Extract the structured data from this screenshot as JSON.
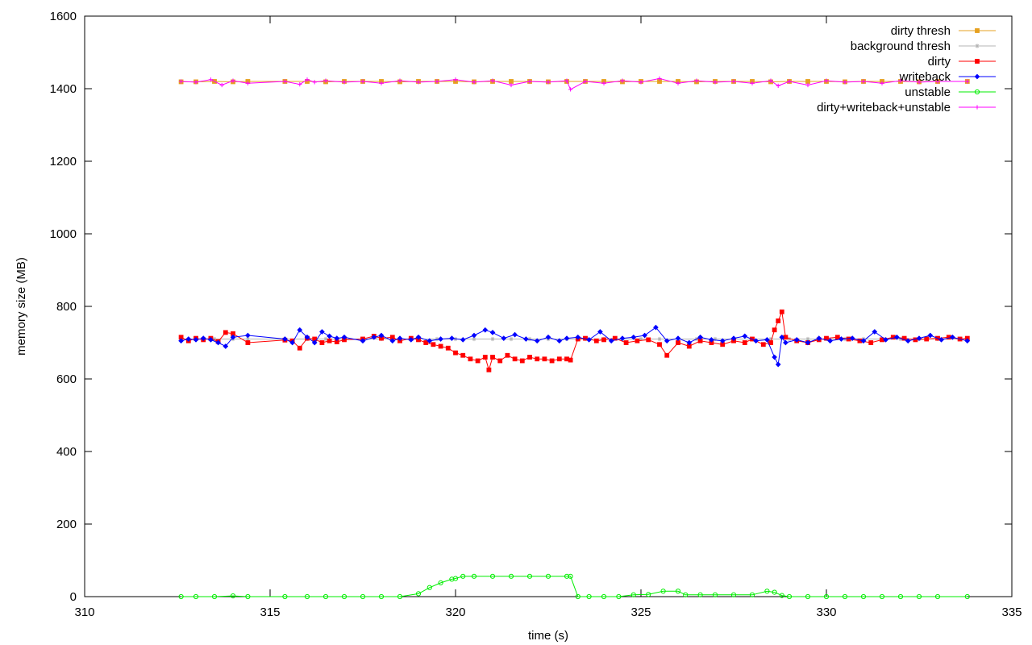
{
  "chart_data": {
    "type": "line",
    "title": "",
    "xlabel": "time (s)",
    "ylabel": "memory size (MB)",
    "xlim": [
      310,
      335
    ],
    "ylim": [
      0,
      1600
    ],
    "xticks": [
      310,
      315,
      320,
      325,
      330,
      335
    ],
    "yticks": [
      0,
      200,
      400,
      600,
      800,
      1000,
      1200,
      1400,
      1600
    ],
    "grid": false,
    "legend_position": "top-right",
    "series": [
      {
        "name": "dirty thresh",
        "color": "#e6a020",
        "marker": "square",
        "x": [
          312.6,
          313,
          313.5,
          314,
          314.4,
          315.4,
          316,
          316.5,
          317,
          317.5,
          318,
          318.5,
          319,
          319.5,
          320,
          320.5,
          321,
          321.5,
          322,
          322.5,
          323,
          323.5,
          324,
          324.5,
          325,
          325.5,
          326,
          326.5,
          327,
          327.5,
          328,
          328.5,
          329,
          329.5,
          330,
          330.5,
          331,
          331.5,
          332,
          332.5,
          333,
          333.8
        ],
        "y": [
          1419,
          1419,
          1420,
          1419,
          1420,
          1420,
          1420,
          1419,
          1420,
          1420,
          1420,
          1419,
          1420,
          1420,
          1420,
          1419,
          1420,
          1420,
          1420,
          1419,
          1420,
          1420,
          1420,
          1419,
          1420,
          1420,
          1420,
          1419,
          1420,
          1420,
          1420,
          1419,
          1420,
          1420,
          1420,
          1419,
          1420,
          1420,
          1420,
          1419,
          1420,
          1420
        ]
      },
      {
        "name": "background thresh",
        "color": "#b4b4b4",
        "marker": "star",
        "x": [
          312.6,
          313,
          313.5,
          314,
          314.4,
          315.4,
          316,
          316.5,
          317,
          317.5,
          318,
          318.5,
          319,
          319.5,
          320,
          320.5,
          321,
          321.5,
          322,
          322.5,
          323,
          323.5,
          324,
          324.5,
          325,
          325.5,
          326,
          326.5,
          327,
          327.5,
          328,
          328.5,
          329,
          329.5,
          330,
          330.5,
          331,
          331.5,
          332,
          332.5,
          333,
          333.8
        ],
        "y": [
          710,
          710,
          710,
          710,
          710,
          710,
          710,
          710,
          710,
          710,
          710,
          710,
          710,
          710,
          710,
          710,
          710,
          710,
          710,
          710,
          710,
          710,
          710,
          710,
          710,
          710,
          710,
          710,
          710,
          710,
          710,
          710,
          710,
          710,
          710,
          710,
          710,
          710,
          710,
          710,
          710,
          710
        ]
      },
      {
        "name": "dirty",
        "color": "#ff0000",
        "marker": "square",
        "x": [
          312.6,
          312.8,
          313,
          313.2,
          313.4,
          313.6,
          313.8,
          314,
          314.4,
          315.4,
          315.6,
          315.8,
          316,
          316.2,
          316.4,
          316.6,
          316.8,
          317,
          317.5,
          317.8,
          318,
          318.3,
          318.5,
          318.8,
          319,
          319.2,
          319.4,
          319.6,
          319.8,
          320,
          320.2,
          320.4,
          320.6,
          320.8,
          320.9,
          321,
          321.2,
          321.4,
          321.6,
          321.8,
          322,
          322.2,
          322.4,
          322.6,
          322.8,
          323,
          323.1,
          323.3,
          323.5,
          323.8,
          324,
          324.3,
          324.6,
          324.9,
          325.2,
          325.5,
          325.7,
          326,
          326.3,
          326.6,
          326.9,
          327.2,
          327.5,
          327.8,
          328,
          328.3,
          328.5,
          328.6,
          328.7,
          328.8,
          328.9,
          329.2,
          329.5,
          329.8,
          330,
          330.3,
          330.6,
          330.9,
          331.2,
          331.5,
          331.8,
          332.1,
          332.4,
          332.7,
          333,
          333.3,
          333.6,
          333.8
        ],
        "y": [
          715,
          705,
          712,
          708,
          712,
          703,
          728,
          725,
          700,
          707,
          705,
          685,
          712,
          710,
          700,
          705,
          702,
          708,
          710,
          718,
          712,
          715,
          705,
          712,
          708,
          700,
          695,
          690,
          685,
          672,
          665,
          655,
          650,
          660,
          625,
          660,
          650,
          665,
          655,
          650,
          660,
          655,
          655,
          650,
          655,
          655,
          652,
          710,
          712,
          705,
          708,
          712,
          700,
          705,
          708,
          695,
          665,
          700,
          690,
          705,
          700,
          695,
          705,
          700,
          710,
          695,
          700,
          735,
          760,
          785,
          715,
          705,
          700,
          708,
          712,
          715,
          710,
          705,
          700,
          708,
          715,
          712,
          708,
          710,
          712,
          715,
          710,
          712
        ]
      },
      {
        "name": "writeback",
        "color": "#0000ff",
        "marker": "diamond",
        "x": [
          312.6,
          312.8,
          313,
          313.2,
          313.4,
          313.6,
          313.8,
          314,
          314.4,
          315.4,
          315.6,
          315.8,
          316,
          316.2,
          316.4,
          316.6,
          316.8,
          317,
          317.5,
          317.8,
          318,
          318.3,
          318.5,
          318.8,
          319,
          319.3,
          319.6,
          319.9,
          320.2,
          320.5,
          320.8,
          321,
          321.3,
          321.6,
          321.9,
          322.2,
          322.5,
          322.8,
          323,
          323.3,
          323.6,
          323.9,
          324.2,
          324.5,
          324.8,
          325.1,
          325.4,
          325.7,
          326,
          326.3,
          326.6,
          326.9,
          327.2,
          327.5,
          327.8,
          328.1,
          328.4,
          328.6,
          328.7,
          328.8,
          328.9,
          329.2,
          329.5,
          329.8,
          330.1,
          330.4,
          330.7,
          331,
          331.3,
          331.6,
          331.9,
          332.2,
          332.5,
          332.8,
          333.1,
          333.4,
          333.8
        ],
        "y": [
          705,
          710,
          708,
          712,
          708,
          700,
          690,
          715,
          720,
          710,
          700,
          735,
          715,
          700,
          730,
          718,
          712,
          715,
          705,
          715,
          720,
          705,
          712,
          708,
          715,
          705,
          710,
          712,
          708,
          720,
          735,
          728,
          712,
          722,
          710,
          705,
          715,
          705,
          712,
          715,
          708,
          730,
          705,
          712,
          715,
          720,
          742,
          705,
          712,
          700,
          715,
          708,
          705,
          712,
          718,
          705,
          708,
          660,
          640,
          715,
          700,
          708,
          700,
          712,
          705,
          710,
          712,
          705,
          730,
          708,
          715,
          705,
          712,
          720,
          708,
          715,
          705
        ]
      },
      {
        "name": "unstable",
        "color": "#00ee00",
        "marker": "circle",
        "x": [
          312.6,
          313,
          313.5,
          314,
          314.4,
          315.4,
          316,
          316.5,
          317,
          317.5,
          318,
          318.5,
          319,
          319.3,
          319.6,
          319.9,
          320,
          320.2,
          320.5,
          321,
          321.5,
          322,
          322.5,
          323,
          323.1,
          323.3,
          323.6,
          324,
          324.4,
          324.8,
          325.2,
          325.6,
          326,
          326.2,
          326.6,
          327,
          327.5,
          328,
          328.4,
          328.6,
          328.8,
          329,
          329.5,
          330,
          330.5,
          331,
          331.5,
          332,
          332.5,
          333,
          333.8
        ],
        "y": [
          0,
          0,
          0,
          2,
          0,
          0,
          0,
          0,
          0,
          0,
          0,
          0,
          8,
          25,
          38,
          48,
          50,
          56,
          56,
          56,
          56,
          56,
          56,
          56,
          56,
          0,
          0,
          0,
          0,
          5,
          6,
          15,
          15,
          5,
          5,
          5,
          5,
          5,
          15,
          12,
          3,
          0,
          0,
          0,
          0,
          0,
          0,
          0,
          0,
          0,
          0
        ]
      },
      {
        "name": "dirty+writeback+unstable",
        "color": "#ff00ff",
        "marker": "plus",
        "x": [
          312.6,
          313,
          313.4,
          313.7,
          314,
          314.4,
          315.4,
          315.8,
          316,
          316.2,
          316.5,
          317,
          317.5,
          318,
          318.5,
          319,
          319.5,
          320,
          320.5,
          321,
          321.5,
          322,
          322.5,
          323,
          323.1,
          323.5,
          324,
          324.5,
          325,
          325.5,
          326,
          326.5,
          327,
          327.5,
          328,
          328.5,
          328.7,
          329,
          329.5,
          330,
          330.5,
          331,
          331.5,
          332,
          332.5,
          333,
          333.8
        ],
        "y": [
          1420,
          1418,
          1425,
          1410,
          1422,
          1415,
          1420,
          1412,
          1425,
          1418,
          1422,
          1418,
          1420,
          1415,
          1422,
          1418,
          1420,
          1425,
          1418,
          1422,
          1410,
          1420,
          1418,
          1422,
          1398,
          1420,
          1415,
          1422,
          1418,
          1428,
          1415,
          1422,
          1418,
          1420,
          1415,
          1422,
          1408,
          1420,
          1410,
          1422,
          1418,
          1420,
          1415,
          1422,
          1418,
          1420,
          1420
        ]
      }
    ]
  }
}
